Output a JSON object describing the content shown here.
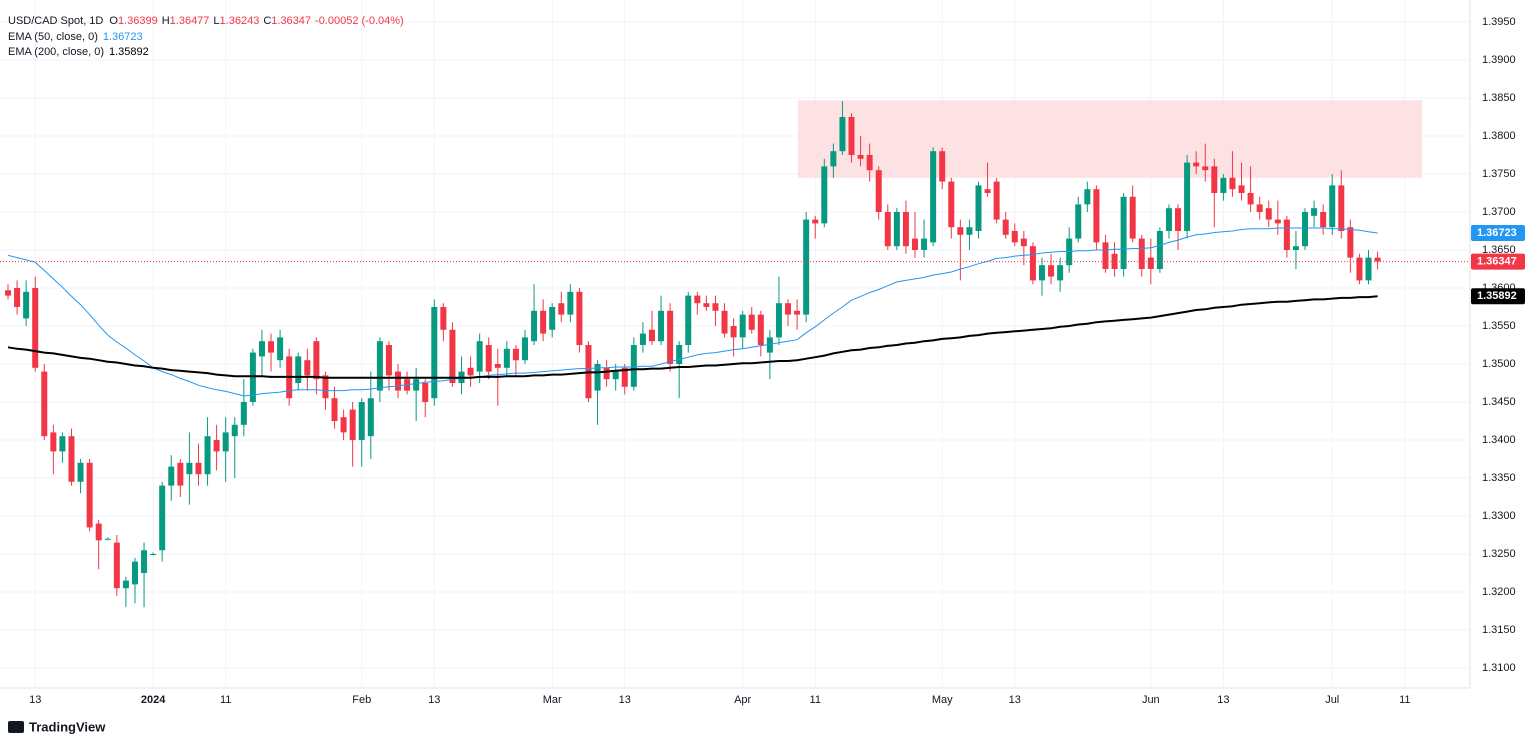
{
  "chart_data": {
    "type": "candlestick",
    "title": "USD/CAD Spot, 1D",
    "change": "-0.00052 (-0.04%)",
    "ohlc_keys": [
      "O",
      "H",
      "L",
      "C"
    ],
    "watermark": "TradingView",
    "up_color": "#089981",
    "down_color": "#f23645",
    "grid": true,
    "ylim": [
      1.30737,
      1.39684
    ],
    "yticks": [
      {
        "value": 1.31,
        "label": "1.3100"
      },
      {
        "value": 1.315,
        "label": "1.3150"
      },
      {
        "value": 1.32,
        "label": "1.3200"
      },
      {
        "value": 1.325,
        "label": "1.3250"
      },
      {
        "value": 1.33,
        "label": "1.3300"
      },
      {
        "value": 1.335,
        "label": "1.3350"
      },
      {
        "value": 1.34,
        "label": "1.3400"
      },
      {
        "value": 1.345,
        "label": "1.3450"
      },
      {
        "value": 1.35,
        "label": "1.3500"
      },
      {
        "value": 1.355,
        "label": "1.3550"
      },
      {
        "value": 1.36,
        "label": "1.3600"
      },
      {
        "value": 1.365,
        "label": "1.3650"
      },
      {
        "value": 1.37,
        "label": "1.3700"
      },
      {
        "value": 1.375,
        "label": "1.3750"
      },
      {
        "value": 1.38,
        "label": "1.3800"
      },
      {
        "value": 1.385,
        "label": "1.3850"
      },
      {
        "value": 1.39,
        "label": "1.3900"
      },
      {
        "value": 1.395,
        "label": "1.3950"
      }
    ],
    "zone": {
      "low": 1.3745,
      "high": 1.3847,
      "color": "#fde2e4"
    },
    "categories": [
      null,
      null,
      null,
      "13",
      null,
      null,
      null,
      null,
      null,
      null,
      null,
      null,
      null,
      null,
      null,
      null,
      "2024",
      null,
      null,
      null,
      null,
      null,
      null,
      null,
      "11",
      null,
      null,
      null,
      null,
      null,
      null,
      null,
      null,
      null,
      null,
      null,
      null,
      null,
      null,
      "Feb",
      null,
      null,
      null,
      null,
      null,
      null,
      null,
      "13",
      null,
      null,
      null,
      null,
      null,
      null,
      null,
      null,
      null,
      null,
      null,
      null,
      "Mar",
      null,
      null,
      null,
      null,
      null,
      null,
      null,
      "13",
      null,
      null,
      null,
      null,
      null,
      null,
      null,
      null,
      null,
      null,
      null,
      null,
      "Apr",
      null,
      null,
      null,
      null,
      null,
      null,
      null,
      "11",
      null,
      null,
      null,
      null,
      null,
      null,
      null,
      null,
      null,
      null,
      null,
      null,
      null,
      "May",
      null,
      null,
      null,
      null,
      null,
      null,
      null,
      "13",
      null,
      null,
      null,
      null,
      null,
      null,
      null,
      null,
      null,
      null,
      null,
      null,
      null,
      null,
      "Jun",
      null,
      null,
      null,
      null,
      null,
      null,
      null,
      "13",
      null,
      null,
      null,
      null,
      null,
      null,
      null,
      null,
      null,
      null,
      null,
      "Jul",
      null,
      null,
      null,
      null,
      null,
      null,
      null,
      "11"
    ],
    "open": [
      1.3597,
      1.36,
      1.356,
      1.36,
      1.349,
      1.341,
      1.3385,
      1.3405,
      1.3345,
      1.337,
      1.329,
      1.327,
      1.3265,
      1.3205,
      1.321,
      1.3225,
      1.325,
      1.3255,
      1.334,
      1.337,
      1.3355,
      1.337,
      1.3355,
      1.34,
      1.3385,
      1.3405,
      1.342,
      1.345,
      1.351,
      1.353,
      1.3505,
      1.351,
      1.3475,
      1.3505,
      1.353,
      1.3485,
      1.3455,
      1.343,
      1.344,
      1.34,
      1.3405,
      1.3465,
      1.3525,
      1.349,
      1.348,
      1.3465,
      1.3475,
      1.3455,
      1.3575,
      1.3545,
      1.3475,
      1.3495,
      1.349,
      1.3525,
      1.35,
      1.3495,
      1.352,
      1.3505,
      1.353,
      1.357,
      1.3545,
      1.358,
      1.3565,
      1.3595,
      1.3525,
      1.3465,
      1.3495,
      1.348,
      1.3495,
      1.347,
      1.3525,
      1.3545,
      1.353,
      1.357,
      1.35,
      1.3525,
      1.359,
      1.358,
      1.358,
      1.357,
      1.355,
      1.3535,
      1.3565,
      1.3565,
      1.3515,
      1.3535,
      1.358,
      1.357,
      1.3565,
      1.369,
      1.3685,
      1.376,
      1.378,
      1.3825,
      1.3775,
      1.3775,
      1.3755,
      1.37,
      1.3655,
      1.37,
      1.3665,
      1.365,
      1.366,
      1.378,
      1.374,
      1.368,
      1.367,
      1.3675,
      1.373,
      1.374,
      1.369,
      1.3675,
      1.3665,
      1.3655,
      1.361,
      1.363,
      1.361,
      1.363,
      1.3665,
      1.371,
      1.373,
      1.366,
      1.3645,
      1.3625,
      1.372,
      1.3665,
      1.364,
      1.3625,
      1.3675,
      1.3705,
      1.3675,
      1.3765,
      1.376,
      1.376,
      1.3725,
      1.3745,
      1.3735,
      1.3725,
      1.371,
      1.3705,
      1.369,
      1.369,
      1.365,
      1.3655,
      1.3695,
      1.37,
      1.368,
      1.3735,
      1.368,
      1.364,
      1.361,
      1.36399,
      null,
      null,
      null
    ],
    "high": [
      1.3605,
      1.361,
      1.361,
      1.3615,
      1.35,
      1.342,
      1.341,
      1.3415,
      1.3375,
      1.3375,
      1.3295,
      1.3272,
      1.3275,
      1.322,
      1.3245,
      1.3265,
      1.3252,
      1.3345,
      1.338,
      1.3375,
      1.341,
      1.3395,
      1.343,
      1.342,
      1.343,
      1.343,
      1.348,
      1.352,
      1.3545,
      1.354,
      1.3545,
      1.352,
      1.3515,
      1.352,
      1.3535,
      1.349,
      1.347,
      1.344,
      1.345,
      1.3455,
      1.349,
      1.3535,
      1.353,
      1.35,
      1.349,
      1.3495,
      1.348,
      1.3585,
      1.358,
      1.3555,
      1.351,
      1.351,
      1.354,
      1.3535,
      1.352,
      1.353,
      1.3525,
      1.3545,
      1.3605,
      1.3585,
      1.358,
      1.3595,
      1.3605,
      1.36,
      1.353,
      1.3505,
      1.3505,
      1.35,
      1.35,
      1.3535,
      1.3555,
      1.357,
      1.359,
      1.358,
      1.353,
      1.3595,
      1.3595,
      1.359,
      1.359,
      1.358,
      1.356,
      1.357,
      1.3575,
      1.357,
      1.3545,
      1.3615,
      1.3585,
      1.3585,
      1.37,
      1.3695,
      1.377,
      1.379,
      1.3846,
      1.383,
      1.38,
      1.379,
      1.376,
      1.371,
      1.3705,
      1.3715,
      1.37,
      1.369,
      1.3785,
      1.3785,
      1.3745,
      1.369,
      1.369,
      1.374,
      1.3765,
      1.3745,
      1.37,
      1.3685,
      1.3675,
      1.366,
      1.364,
      1.3645,
      1.364,
      1.368,
      1.372,
      1.374,
      1.3735,
      1.367,
      1.366,
      1.3725,
      1.3735,
      1.367,
      1.3665,
      1.368,
      1.371,
      1.371,
      1.3775,
      1.378,
      1.379,
      1.377,
      1.375,
      1.378,
      1.3765,
      1.376,
      1.372,
      1.3715,
      1.3715,
      1.3695,
      1.3675,
      1.3705,
      1.3715,
      1.371,
      1.375,
      1.3755,
      1.369,
      1.3645,
      1.365,
      1.36477,
      null,
      null,
      null
    ],
    "low": [
      1.3585,
      1.3565,
      1.355,
      1.349,
      1.34,
      1.3355,
      1.337,
      1.334,
      1.333,
      1.328,
      1.323,
      1.3268,
      1.3195,
      1.318,
      1.3185,
      1.318,
      1.3248,
      1.324,
      1.332,
      1.3325,
      1.3315,
      1.334,
      1.334,
      1.336,
      1.3345,
      1.335,
      1.3405,
      1.3445,
      1.3485,
      1.349,
      1.3495,
      1.3445,
      1.3465,
      1.3465,
      1.346,
      1.344,
      1.3415,
      1.34,
      1.3365,
      1.3365,
      1.3375,
      1.345,
      1.3465,
      1.3455,
      1.346,
      1.3425,
      1.343,
      1.3445,
      1.353,
      1.347,
      1.346,
      1.347,
      1.3475,
      1.348,
      1.3445,
      1.3485,
      1.3485,
      1.35,
      1.3525,
      1.353,
      1.3535,
      1.3555,
      1.3555,
      1.3515,
      1.345,
      1.342,
      1.347,
      1.3465,
      1.346,
      1.3465,
      1.3515,
      1.3525,
      1.3525,
      1.349,
      1.3455,
      1.3515,
      1.3565,
      1.357,
      1.355,
      1.3535,
      1.351,
      1.352,
      1.354,
      1.351,
      1.348,
      1.3525,
      1.355,
      1.3545,
      1.3555,
      1.3665,
      1.368,
      1.3745,
      1.3775,
      1.3765,
      1.376,
      1.374,
      1.369,
      1.365,
      1.365,
      1.3645,
      1.364,
      1.364,
      1.3655,
      1.373,
      1.3665,
      1.361,
      1.365,
      1.3665,
      1.372,
      1.3685,
      1.3665,
      1.3655,
      1.363,
      1.3605,
      1.359,
      1.3605,
      1.3595,
      1.362,
      1.366,
      1.37,
      1.365,
      1.362,
      1.3615,
      1.3615,
      1.366,
      1.3615,
      1.3605,
      1.362,
      1.3665,
      1.365,
      1.3665,
      1.375,
      1.374,
      1.368,
      1.3715,
      1.372,
      1.3715,
      1.37,
      1.369,
      1.368,
      1.367,
      1.364,
      1.3625,
      1.365,
      1.368,
      1.367,
      1.367,
      1.3665,
      1.362,
      1.3605,
      1.3605,
      1.36243,
      null,
      null,
      null
    ],
    "close": [
      1.359,
      1.3575,
      1.3595,
      1.3495,
      1.3405,
      1.3385,
      1.3405,
      1.3345,
      1.337,
      1.3285,
      1.3268,
      1.327,
      1.3205,
      1.3215,
      1.324,
      1.3255,
      1.325,
      1.334,
      1.3365,
      1.334,
      1.337,
      1.3355,
      1.3405,
      1.3385,
      1.341,
      1.342,
      1.345,
      1.3515,
      1.353,
      1.3515,
      1.3535,
      1.3455,
      1.351,
      1.3485,
      1.348,
      1.3455,
      1.3425,
      1.341,
      1.34,
      1.345,
      1.3455,
      1.353,
      1.3485,
      1.3465,
      1.3465,
      1.348,
      1.345,
      1.3575,
      1.3545,
      1.3475,
      1.349,
      1.3485,
      1.353,
      1.349,
      1.3495,
      1.352,
      1.3505,
      1.3535,
      1.357,
      1.354,
      1.3575,
      1.3565,
      1.3595,
      1.3525,
      1.3455,
      1.35,
      1.348,
      1.349,
      1.347,
      1.3525,
      1.354,
      1.353,
      1.357,
      1.35,
      1.3525,
      1.359,
      1.358,
      1.3575,
      1.357,
      1.354,
      1.3535,
      1.3565,
      1.3545,
      1.3525,
      1.3535,
      1.358,
      1.3565,
      1.3565,
      1.369,
      1.3685,
      1.376,
      1.378,
      1.3825,
      1.3775,
      1.377,
      1.3755,
      1.37,
      1.3655,
      1.37,
      1.3655,
      1.365,
      1.3665,
      1.378,
      1.374,
      1.368,
      1.367,
      1.368,
      1.3735,
      1.3725,
      1.369,
      1.367,
      1.366,
      1.3655,
      1.361,
      1.363,
      1.3615,
      1.363,
      1.3665,
      1.371,
      1.373,
      1.366,
      1.3625,
      1.3625,
      1.372,
      1.3665,
      1.3625,
      1.3625,
      1.3675,
      1.3705,
      1.3675,
      1.3765,
      1.376,
      1.3755,
      1.3725,
      1.3745,
      1.373,
      1.3725,
      1.371,
      1.37,
      1.369,
      1.3685,
      1.365,
      1.3655,
      1.37,
      1.3705,
      1.368,
      1.3735,
      1.3675,
      1.364,
      1.361,
      1.364,
      1.36347,
      null,
      null,
      null
    ],
    "overlays": [
      {
        "name": "EMA (50, close, 0)",
        "color": "#2196f3",
        "values": [
          1.3643,
          1.364,
          1.3637,
          1.3634,
          1.3623,
          1.3612,
          1.3601,
          1.3589,
          1.3578,
          1.3565,
          1.3551,
          1.3538,
          1.3529,
          1.3521,
          1.3512,
          1.3504,
          1.3495,
          1.349,
          1.3486,
          1.3481,
          1.3477,
          1.3472,
          1.3469,
          1.3466,
          1.3464,
          1.3461,
          1.3458,
          1.3459,
          1.3461,
          1.3462,
          1.3463,
          1.3465,
          1.3466,
          1.3466,
          1.3466,
          1.3465,
          1.3465,
          1.3465,
          1.3466,
          1.3466,
          1.3467,
          1.3469,
          1.347,
          1.3471,
          1.3473,
          1.3474,
          1.3476,
          1.3477,
          1.3478,
          1.348,
          1.3481,
          1.3482,
          1.3483,
          1.3485,
          1.3486,
          1.3487,
          1.3488,
          1.3488,
          1.3489,
          1.349,
          1.3491,
          1.3492,
          1.3493,
          1.3494,
          1.3494,
          1.3495,
          1.3495,
          1.3496,
          1.3496,
          1.3496,
          1.3497,
          1.3497,
          1.35,
          1.3503,
          1.3506,
          1.3509,
          1.3512,
          1.3514,
          1.3515,
          1.3517,
          1.3519,
          1.352,
          1.3522,
          1.3524,
          1.3526,
          1.3528,
          1.353,
          1.3532,
          1.3541,
          1.3549,
          1.3558,
          1.3567,
          1.3575,
          1.3584,
          1.3589,
          1.3594,
          1.3598,
          1.3603,
          1.3608,
          1.361,
          1.3612,
          1.3614,
          1.3617,
          1.3619,
          1.3621,
          1.3625,
          1.3628,
          1.3632,
          1.3635,
          1.3639,
          1.364,
          1.3642,
          1.3643,
          1.3644,
          1.3646,
          1.3647,
          1.3648,
          1.3648,
          1.3649,
          1.3649,
          1.365,
          1.365,
          1.3651,
          1.3651,
          1.3652,
          1.3652,
          1.3653,
          1.3656,
          1.366,
          1.3663,
          1.3667,
          1.367,
          1.3671,
          1.3673,
          1.3674,
          1.3675,
          1.3677,
          1.3678,
          1.3678,
          1.3678,
          1.3679,
          1.3679,
          1.3679,
          1.3679,
          1.3679,
          1.3679,
          1.3678,
          1.3678,
          1.3677,
          1.3676,
          1.3674,
          1.36723,
          null,
          null,
          null
        ]
      },
      {
        "name": "EMA (200, close, 0)",
        "color": "#000000",
        "values": [
          1.3522,
          1.352,
          1.3519,
          1.3517,
          1.3515,
          1.3514,
          1.3512,
          1.351,
          1.3508,
          1.3507,
          1.3505,
          1.3503,
          1.3502,
          1.35,
          1.3498,
          1.3497,
          1.3495,
          1.3494,
          1.3492,
          1.3491,
          1.349,
          1.3489,
          1.3488,
          1.3486,
          1.3485,
          1.3484,
          1.3484,
          1.3484,
          1.3484,
          1.3483,
          1.3483,
          1.3483,
          1.3483,
          1.3483,
          1.3483,
          1.3482,
          1.3482,
          1.3482,
          1.3482,
          1.3482,
          1.3482,
          1.3482,
          1.3482,
          1.3482,
          1.3482,
          1.3482,
          1.3482,
          1.3482,
          1.3482,
          1.3482,
          1.3482,
          1.3482,
          1.3483,
          1.3483,
          1.3483,
          1.3484,
          1.3484,
          1.3484,
          1.3485,
          1.3485,
          1.3486,
          1.3486,
          1.3487,
          1.3488,
          1.3489,
          1.3489,
          1.349,
          1.3491,
          1.3492,
          1.3493,
          1.3493,
          1.3494,
          1.3494,
          1.3495,
          1.3496,
          1.3496,
          1.3497,
          1.3498,
          1.3498,
          1.3499,
          1.35,
          1.3501,
          1.3501,
          1.3502,
          1.3503,
          1.3504,
          1.3504,
          1.3505,
          1.3507,
          1.3509,
          1.3511,
          1.3514,
          1.3516,
          1.3518,
          1.3519,
          1.3521,
          1.3522,
          1.3524,
          1.3525,
          1.3527,
          1.3528,
          1.353,
          1.3531,
          1.3533,
          1.3534,
          1.3535,
          1.3537,
          1.3538,
          1.354,
          1.3541,
          1.3542,
          1.3543,
          1.3544,
          1.3545,
          1.3546,
          1.3547,
          1.3549,
          1.355,
          1.3552,
          1.3553,
          1.3555,
          1.3556,
          1.3557,
          1.3558,
          1.3559,
          1.356,
          1.3561,
          1.3563,
          1.3565,
          1.3567,
          1.3569,
          1.3571,
          1.3572,
          1.3574,
          1.3575,
          1.3576,
          1.3578,
          1.3579,
          1.358,
          1.3581,
          1.3582,
          1.3582,
          1.3583,
          1.3584,
          1.3585,
          1.3585,
          1.3586,
          1.3587,
          1.3587,
          1.3588,
          1.3588,
          1.35892,
          null,
          null,
          null
        ]
      }
    ]
  }
}
